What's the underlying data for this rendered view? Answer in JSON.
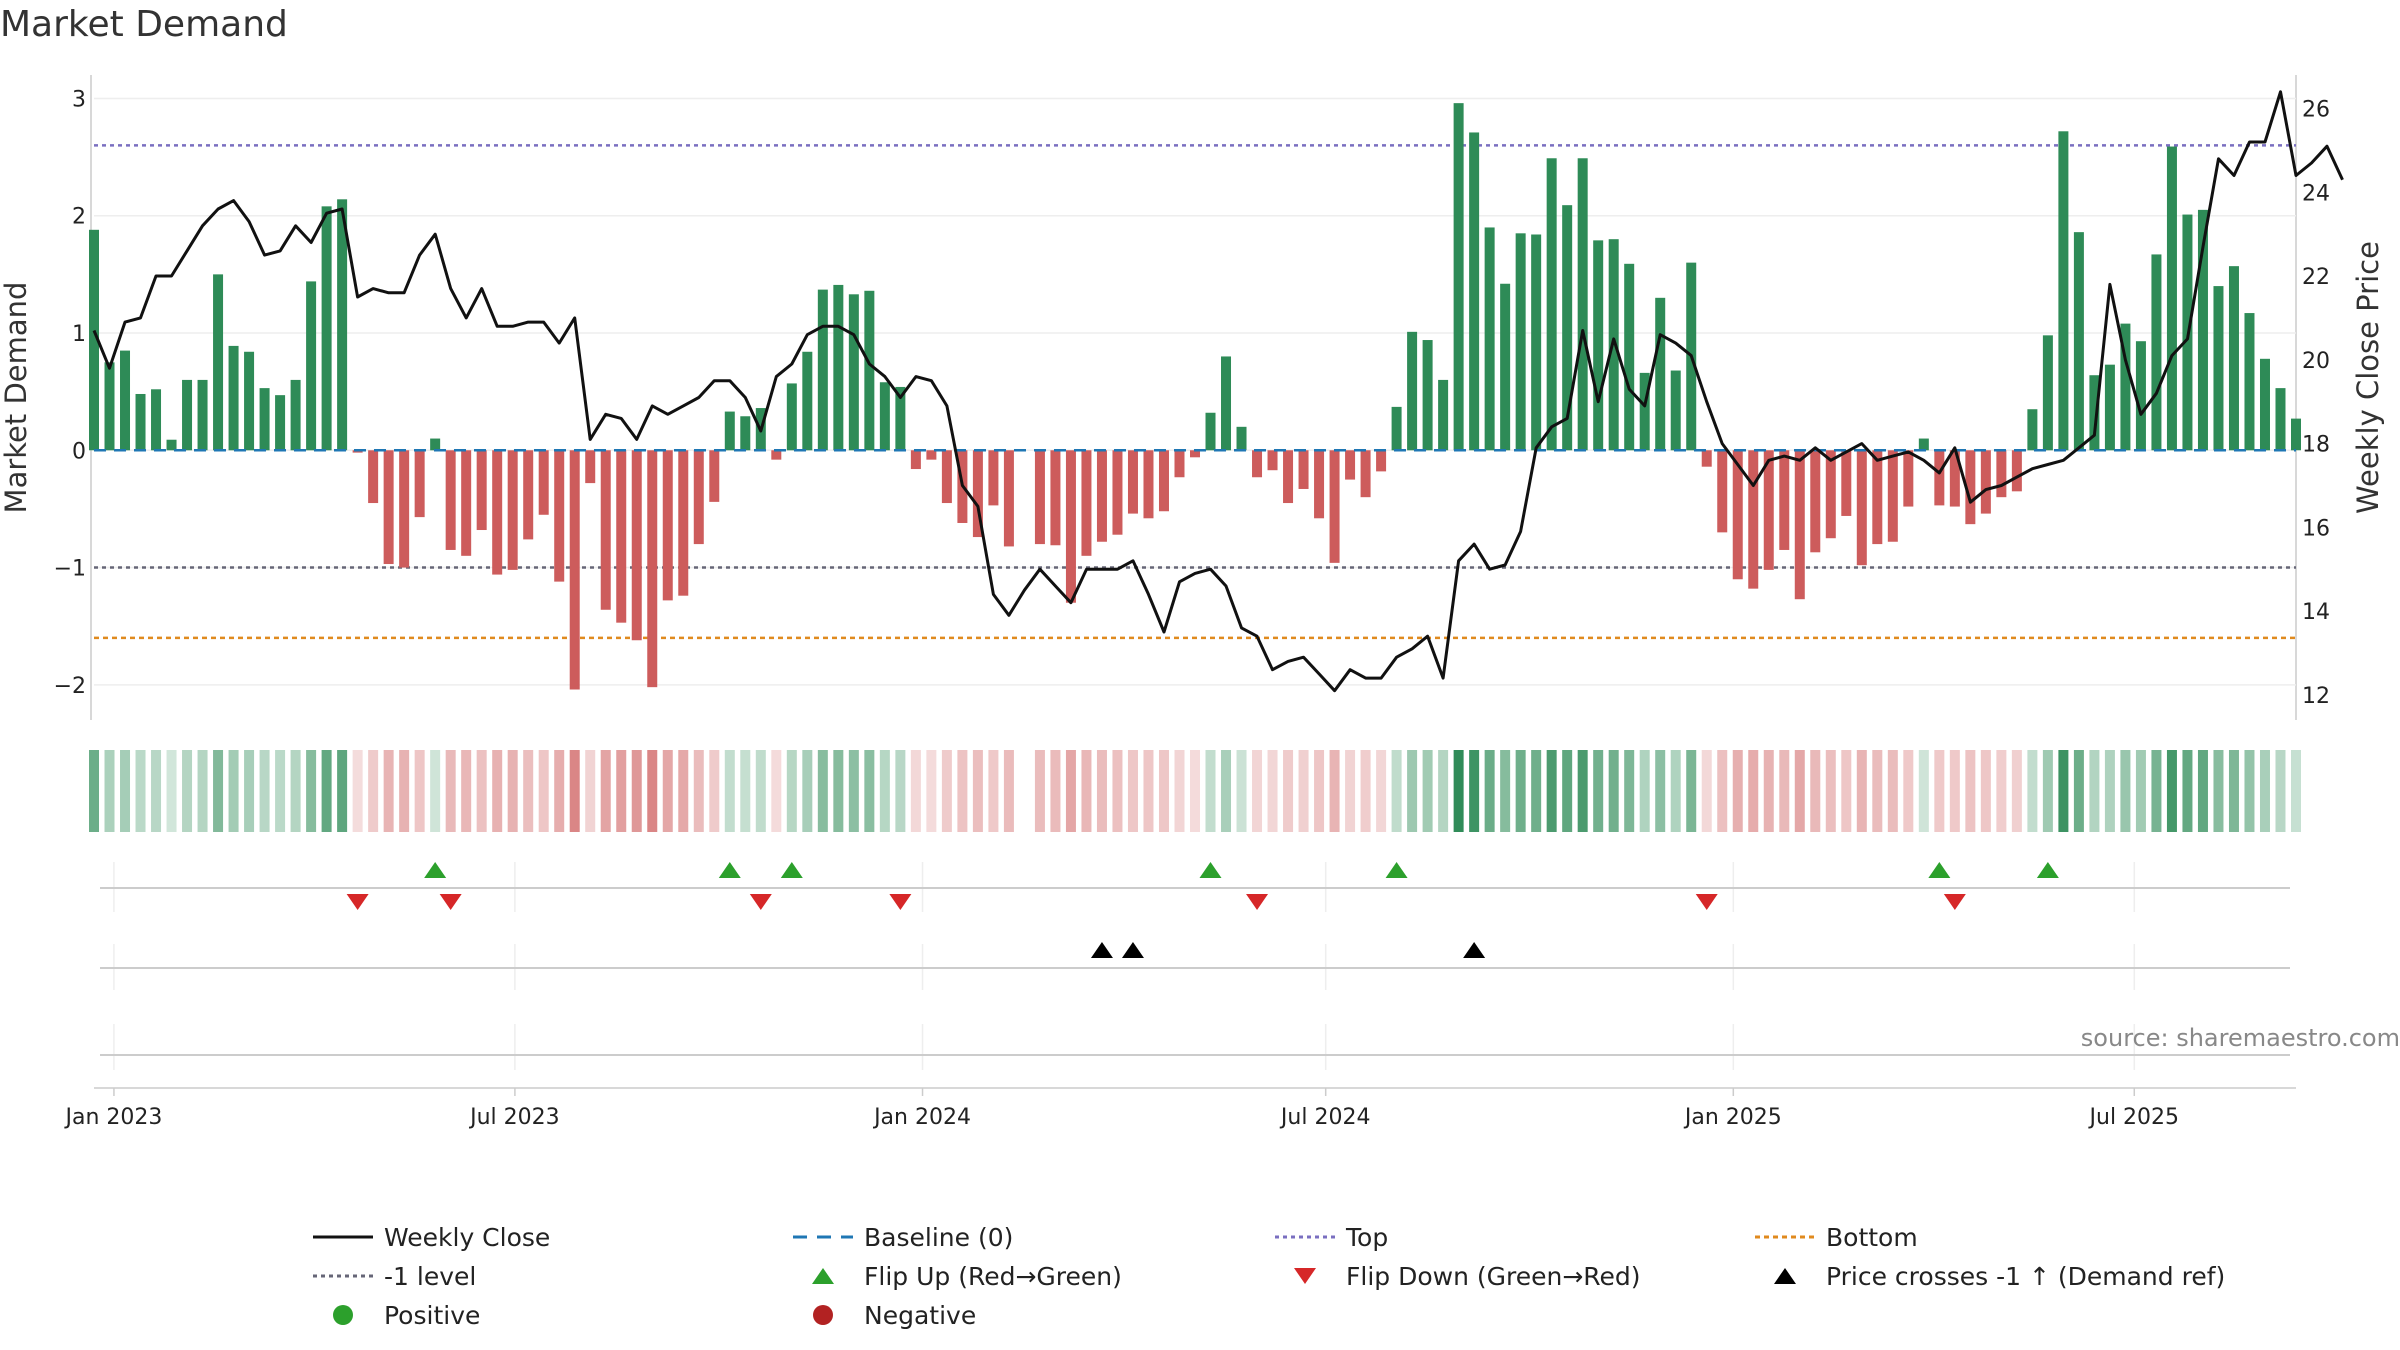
{
  "title": "Market Demand",
  "source": "source: sharemaestro.com",
  "colors": {
    "positive_bar": "#2e8b57",
    "negative_bar": "#cd5c5c",
    "price_line": "#111111",
    "baseline": "#1f77b4",
    "top_line": "#7a6fc0",
    "minus1_line": "#666677",
    "bottom_line": "#e08a1e",
    "flip_up": "#2ca02c",
    "flip_down": "#d62728",
    "price_cross": "#000000",
    "positive_dot": "#2ca02c",
    "negative_dot": "#b22222"
  },
  "chart_data": {
    "type": "bar",
    "ylabel": "Market Demand",
    "y2label": "Weekly Close Price",
    "ylim": [
      -2.3,
      3.2
    ],
    "y2lim": [
      11.4,
      26.8
    ],
    "yticks": [
      -2,
      -1,
      0,
      1,
      2,
      3
    ],
    "y2ticks": [
      12,
      14,
      16,
      18,
      20,
      22,
      24,
      26
    ],
    "top_level": 2.6,
    "minus1_level": -1.0,
    "bottom_level": -1.6,
    "x_start": "2022-12-23",
    "x_end": "2025-09-12",
    "xticks": [
      {
        "date": "2023-01-01",
        "label": "Jan 2023"
      },
      {
        "date": "2023-07-01",
        "label": "Jul 2023"
      },
      {
        "date": "2024-01-01",
        "label": "Jan 2024"
      },
      {
        "date": "2024-07-01",
        "label": "Jul 2024"
      },
      {
        "date": "2025-01-01",
        "label": "Jan 2025"
      },
      {
        "date": "2025-07-01",
        "label": "Jul 2025"
      }
    ],
    "first_week": "2022-12-23",
    "demand": [
      1.88,
      0.75,
      0.85,
      0.48,
      0.52,
      0.09,
      0.6,
      0.6,
      1.5,
      0.89,
      0.84,
      0.53,
      0.47,
      0.6,
      1.44,
      2.08,
      2.14,
      -0.02,
      -0.45,
      -0.97,
      -1.0,
      -0.57,
      0.1,
      -0.85,
      -0.9,
      -0.68,
      -1.06,
      -1.02,
      -0.76,
      -0.55,
      -1.12,
      -2.04,
      -0.28,
      -1.36,
      -1.47,
      -1.62,
      -2.02,
      -1.28,
      -1.24,
      -0.8,
      -0.44,
      0.33,
      0.29,
      0.36,
      -0.08,
      0.57,
      0.84,
      1.37,
      1.41,
      1.33,
      1.36,
      0.58,
      0.54,
      -0.16,
      -0.08,
      -0.45,
      -0.62,
      -0.74,
      -0.47,
      -0.82,
      null,
      -0.8,
      -0.81,
      -1.3,
      -0.9,
      -0.78,
      -0.72,
      -0.54,
      -0.58,
      -0.52,
      -0.23,
      -0.06,
      0.32,
      0.8,
      0.2,
      -0.23,
      -0.17,
      -0.45,
      -0.33,
      -0.58,
      -0.96,
      -0.25,
      -0.4,
      -0.18,
      0.37,
      1.01,
      0.94,
      0.6,
      2.96,
      2.71,
      1.9,
      1.42,
      1.85,
      1.84,
      2.49,
      2.09,
      2.49,
      1.79,
      1.8,
      1.59,
      0.66,
      1.3,
      0.68,
      1.6,
      -0.14,
      -0.7,
      -1.1,
      -1.18,
      -1.02,
      -0.85,
      -1.27,
      -0.87,
      -0.75,
      -0.56,
      -0.98,
      -0.8,
      -0.78,
      -0.48,
      0.1,
      -0.47,
      -0.48,
      -0.63,
      -0.54,
      -0.4,
      -0.35,
      0.35,
      0.98,
      2.72,
      1.86,
      0.64,
      0.73,
      1.08,
      0.93,
      1.67,
      2.59,
      2.01,
      2.05,
      1.4,
      1.57,
      1.17,
      0.78,
      0.53,
      0.27
    ],
    "price": [
      20.7,
      19.8,
      20.9,
      21.0,
      22.0,
      22.0,
      22.6,
      23.2,
      23.6,
      23.8,
      23.3,
      22.5,
      22.6,
      23.2,
      22.8,
      23.5,
      23.6,
      21.5,
      21.7,
      21.6,
      21.6,
      22.5,
      23.0,
      21.7,
      21.0,
      21.7,
      20.8,
      20.8,
      20.9,
      20.9,
      20.4,
      21.0,
      18.1,
      18.7,
      18.6,
      18.1,
      18.9,
      18.7,
      18.9,
      19.1,
      19.5,
      19.5,
      19.1,
      18.3,
      19.6,
      19.9,
      20.6,
      20.8,
      20.8,
      20.6,
      19.9,
      19.6,
      19.1,
      19.6,
      19.5,
      18.9,
      17.0,
      16.5,
      14.4,
      13.9,
      14.5,
      15.0,
      14.6,
      14.2,
      15.0,
      15.0,
      15.0,
      15.2,
      14.4,
      13.5,
      14.7,
      14.9,
      15.0,
      14.6,
      13.6,
      13.4,
      12.6,
      12.8,
      12.9,
      12.5,
      12.1,
      12.6,
      12.4,
      12.4,
      12.9,
      13.1,
      13.4,
      12.4,
      15.2,
      15.6,
      15.0,
      15.1,
      15.9,
      17.9,
      18.4,
      18.6,
      20.7,
      19.0,
      20.5,
      19.3,
      18.9,
      20.6,
      20.4,
      20.1,
      19.0,
      18.0,
      17.5,
      17.0,
      17.6,
      17.7,
      17.6,
      17.9,
      17.6,
      17.8,
      18.0,
      17.6,
      17.7,
      17.8,
      17.6,
      17.3,
      17.9,
      16.6,
      16.9,
      17.0,
      17.2,
      17.4,
      17.5,
      17.6,
      17.9,
      18.2,
      21.8,
      20.0,
      18.7,
      19.2,
      20.1,
      20.5,
      22.7,
      24.8,
      24.4,
      25.2,
      25.2,
      26.4,
      24.4,
      24.7,
      25.1,
      24.3
    ],
    "flip_up_weeks": [
      22,
      41,
      45,
      72,
      84,
      119,
      126
    ],
    "flip_down_weeks": [
      17,
      23,
      43,
      52,
      75,
      104,
      120
    ],
    "price_cross_weeks": [
      65,
      67,
      89
    ],
    "legend": [
      "Weekly Close",
      "Baseline (0)",
      "Top",
      "Bottom",
      "-1 level",
      "Flip Up (Red→Green)",
      "Flip Down (Green→Red)",
      "Price crosses -1 ↑ (Demand ref)",
      "Positive",
      "Negative"
    ]
  }
}
